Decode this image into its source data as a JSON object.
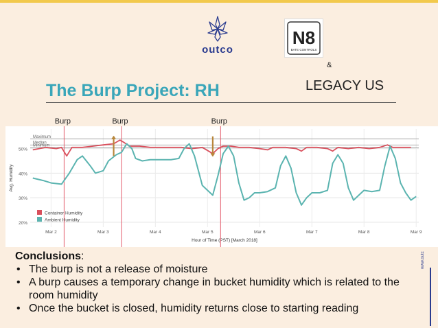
{
  "header": {
    "outco_word": "outco",
    "n8_lines": [
      "N8",
      "BATE CONTROLS"
    ],
    "ampersand": "&",
    "partner": "LEGACY US"
  },
  "slide": {
    "title": "The Burp Project: RH"
  },
  "conclusions": {
    "heading": "Conclusions",
    "heading_suffix": ":",
    "items": [
      "The burp is not a release of moisture",
      "A burp causes a temporary change in bucket humidity which is related to the room humidity",
      "Once the bucket is closed, humidity returns close to starting reading"
    ]
  },
  "side_url": "www.outc",
  "colors": {
    "title": "#3aa6b9",
    "container": "#d94f5c",
    "ambient": "#5bb4b0",
    "burp_line": "#e35a6a",
    "arrow": "#b8863b"
  },
  "chart_data": {
    "type": "line",
    "title": "",
    "xlabel": "Hour of Time (PST) [March 2018]",
    "ylabel": "Avg. Humidity",
    "x_ticks": [
      "Mar 2",
      "Mar 3",
      "Mar 4",
      "Mar 5",
      "Mar 6",
      "Mar 7",
      "Mar 8",
      "Mar 9"
    ],
    "y_ticks": [
      "20%",
      "30%",
      "40%",
      "50%"
    ],
    "y_tick_values": [
      20,
      30,
      40,
      50
    ],
    "ylim": [
      18,
      58
    ],
    "xlim": [
      1.6,
      9.05
    ],
    "reference_lines": [
      {
        "label": "Maximum",
        "value": 54
      },
      {
        "label": "Median",
        "value": 51.5
      },
      {
        "label": "Minimum",
        "value": 50.5
      }
    ],
    "burps": [
      {
        "label": "Burp",
        "x": 2.25
      },
      {
        "label": "Burp",
        "x": 3.35
      },
      {
        "label": "Burp",
        "x": 5.25
      }
    ],
    "arrows": [
      {
        "x": 3.2,
        "direction": "up"
      },
      {
        "x": 5.1,
        "direction": "down"
      }
    ],
    "legend": [
      "Container Humidity",
      "Ambient Humidity"
    ],
    "legend_position": "bottom-left",
    "grid": true,
    "series": [
      {
        "name": "Container Humidity",
        "points": [
          [
            1.65,
            49.5
          ],
          [
            1.9,
            50.5
          ],
          [
            2.1,
            50
          ],
          [
            2.2,
            50.5
          ],
          [
            2.3,
            47
          ],
          [
            2.4,
            50.5
          ],
          [
            2.6,
            50.5
          ],
          [
            2.8,
            51
          ],
          [
            3.0,
            51.5
          ],
          [
            3.2,
            52
          ],
          [
            3.32,
            53.5
          ],
          [
            3.4,
            52.5
          ],
          [
            3.5,
            51
          ],
          [
            3.7,
            51
          ],
          [
            3.9,
            50.5
          ],
          [
            4.1,
            50.5
          ],
          [
            4.3,
            50.5
          ],
          [
            4.5,
            50.5
          ],
          [
            4.7,
            50
          ],
          [
            4.9,
            50.5
          ],
          [
            5.1,
            48
          ],
          [
            5.2,
            50
          ],
          [
            5.3,
            51
          ],
          [
            5.45,
            51
          ],
          [
            5.6,
            50.5
          ],
          [
            5.8,
            50.5
          ],
          [
            6.0,
            50
          ],
          [
            6.15,
            49.5
          ],
          [
            6.25,
            50.5
          ],
          [
            6.5,
            50.5
          ],
          [
            6.7,
            50
          ],
          [
            6.8,
            49
          ],
          [
            6.9,
            50.5
          ],
          [
            7.1,
            50.5
          ],
          [
            7.3,
            50
          ],
          [
            7.4,
            49
          ],
          [
            7.5,
            50.5
          ],
          [
            7.7,
            50
          ],
          [
            7.9,
            50.5
          ],
          [
            8.1,
            50
          ],
          [
            8.3,
            50.5
          ],
          [
            8.45,
            51.5
          ],
          [
            8.55,
            50.5
          ],
          [
            8.7,
            50.5
          ],
          [
            8.9,
            50.5
          ]
        ]
      },
      {
        "name": "Ambient Humidity",
        "points": [
          [
            1.65,
            38
          ],
          [
            1.85,
            37
          ],
          [
            2.0,
            36
          ],
          [
            2.2,
            35.5
          ],
          [
            2.35,
            40
          ],
          [
            2.5,
            45.5
          ],
          [
            2.6,
            47
          ],
          [
            2.75,
            43
          ],
          [
            2.85,
            40
          ],
          [
            3.0,
            41
          ],
          [
            3.1,
            45
          ],
          [
            3.25,
            47.5
          ],
          [
            3.35,
            48.5
          ],
          [
            3.45,
            52
          ],
          [
            3.55,
            50
          ],
          [
            3.62,
            46
          ],
          [
            3.75,
            45
          ],
          [
            3.9,
            45.5
          ],
          [
            4.1,
            45.5
          ],
          [
            4.3,
            45.5
          ],
          [
            4.45,
            46
          ],
          [
            4.55,
            50
          ],
          [
            4.65,
            52
          ],
          [
            4.75,
            47
          ],
          [
            4.9,
            35
          ],
          [
            5.0,
            33
          ],
          [
            5.1,
            31
          ],
          [
            5.2,
            39
          ],
          [
            5.3,
            48
          ],
          [
            5.4,
            51
          ],
          [
            5.5,
            47
          ],
          [
            5.6,
            36
          ],
          [
            5.7,
            29
          ],
          [
            5.8,
            30
          ],
          [
            5.9,
            32
          ],
          [
            6.0,
            32
          ],
          [
            6.15,
            32.5
          ],
          [
            6.3,
            34
          ],
          [
            6.4,
            43
          ],
          [
            6.5,
            47
          ],
          [
            6.6,
            42
          ],
          [
            6.7,
            32
          ],
          [
            6.8,
            27
          ],
          [
            6.9,
            30
          ],
          [
            7.0,
            32
          ],
          [
            7.15,
            32
          ],
          [
            7.3,
            33
          ],
          [
            7.4,
            44
          ],
          [
            7.5,
            47.5
          ],
          [
            7.6,
            44
          ],
          [
            7.7,
            34
          ],
          [
            7.8,
            29
          ],
          [
            7.9,
            31
          ],
          [
            8.0,
            33
          ],
          [
            8.15,
            32.5
          ],
          [
            8.3,
            33
          ],
          [
            8.4,
            43
          ],
          [
            8.5,
            51
          ],
          [
            8.6,
            46
          ],
          [
            8.7,
            36
          ],
          [
            8.8,
            32
          ],
          [
            8.9,
            29
          ],
          [
            9.0,
            30.5
          ]
        ]
      }
    ]
  }
}
